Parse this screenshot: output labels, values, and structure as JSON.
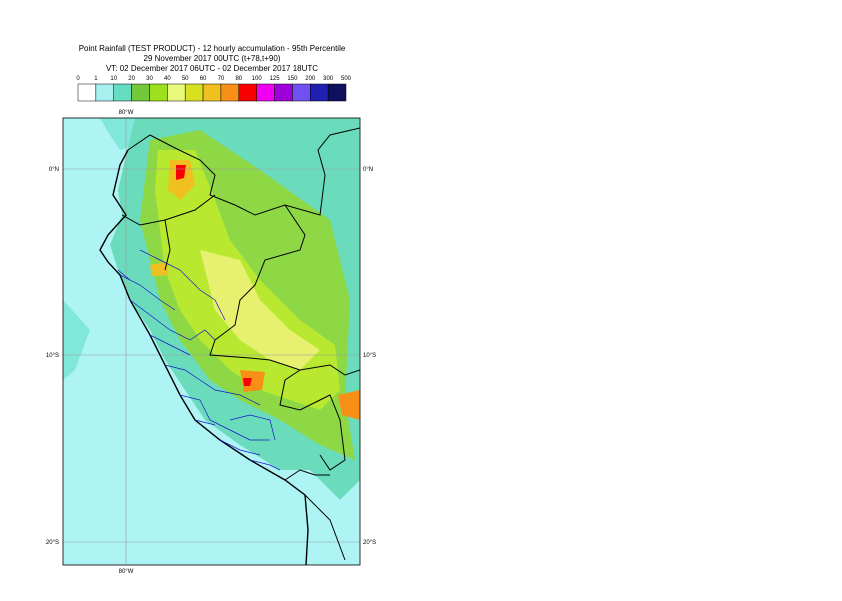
{
  "header": {
    "lines": [
      "Point Rainfall (TEST PRODUCT) - 12 hourly accumulation - 95th Percentile",
      "29 November 2017 00UTC (t+78,t+90)",
      "VT: 02 December 2017 06UTC - 02 December 2017 18UTC"
    ]
  },
  "colorbar": {
    "labels": [
      "0",
      "1",
      "10",
      "20",
      "30",
      "40",
      "50",
      "60",
      "70",
      "80",
      "100",
      "125",
      "150",
      "200",
      "300",
      "500"
    ],
    "colors": [
      "#ffffff",
      "#a8f0f0",
      "#66dcc0",
      "#72c83a",
      "#9ee01e",
      "#e8f87a",
      "#d8e020",
      "#f0c020",
      "#f89018",
      "#f80000",
      "#f000f0",
      "#a000d8",
      "#7050f0",
      "#2020b0",
      "#101060"
    ]
  },
  "map": {
    "lat_labels": [
      "0°N",
      "10°S",
      "20°S"
    ],
    "lon_labels": [
      "80°W"
    ]
  }
}
